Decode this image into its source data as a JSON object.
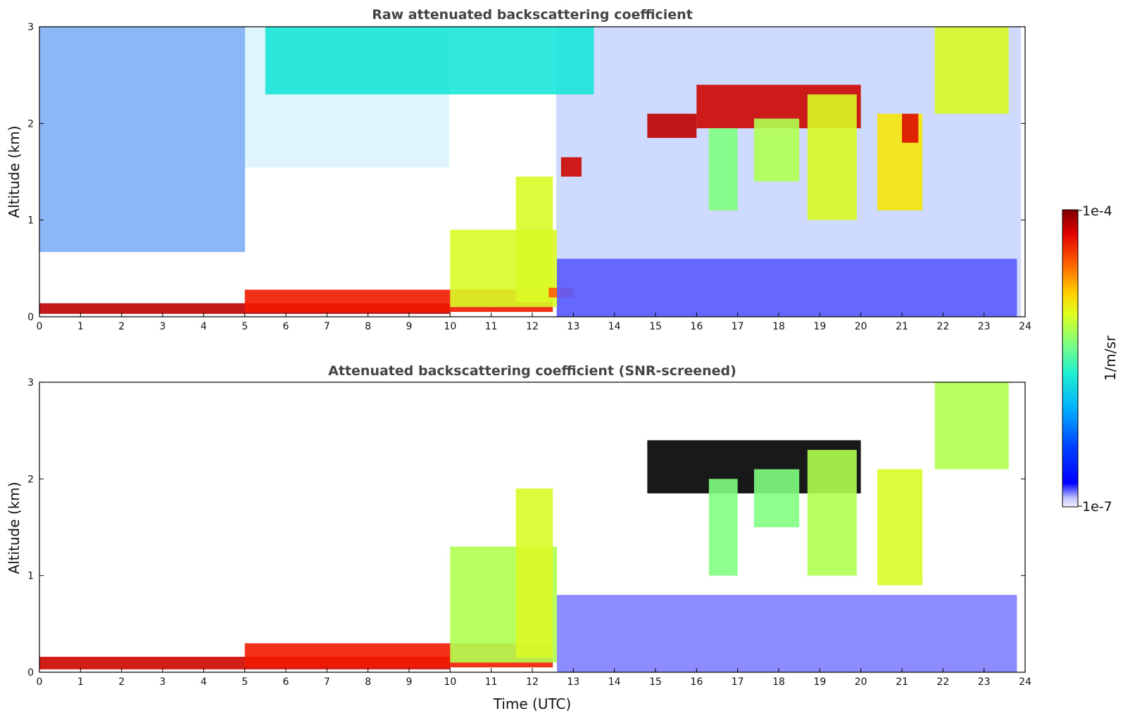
{
  "chart_data": [
    {
      "type": "heatmap",
      "title": "Raw attenuated backscattering coefficient",
      "xlabel": "",
      "ylabel": "Altitude (km)",
      "xlim": [
        0,
        24
      ],
      "ylim": [
        0,
        3
      ],
      "xticks": [
        "0",
        "1",
        "2",
        "3",
        "4",
        "5",
        "6",
        "7",
        "8",
        "9",
        "10",
        "11",
        "12",
        "13",
        "14",
        "15",
        "16",
        "17",
        "18",
        "19",
        "20",
        "21",
        "22",
        "23",
        "24"
      ],
      "yticks": [
        "0",
        "1",
        "2",
        "3"
      ],
      "grid": false,
      "regions": [
        {
          "t": [
            0,
            10
          ],
          "alt": [
            0.03,
            0.14
          ],
          "level": 0.92
        },
        {
          "t": [
            5,
            12.5
          ],
          "alt": [
            0.05,
            0.28
          ],
          "level": 0.85
        },
        {
          "t": [
            10,
            12.6
          ],
          "alt": [
            0.1,
            0.9
          ],
          "level": 0.6
        },
        {
          "t": [
            11.6,
            12.5
          ],
          "alt": [
            0.15,
            1.45
          ],
          "level": 0.6
        },
        {
          "t": [
            12.4,
            13.0
          ],
          "alt": [
            0.2,
            0.3
          ],
          "level": 0.78
        },
        {
          "t": [
            12.6,
            23.8
          ],
          "alt": [
            0,
            0.6
          ],
          "level": 0.12
        },
        {
          "t": [
            12.7,
            13.2
          ],
          "alt": [
            1.45,
            1.65
          ],
          "level": 0.9
        },
        {
          "t": [
            14.8,
            16.0
          ],
          "alt": [
            1.85,
            2.1
          ],
          "level": 0.92
        },
        {
          "t": [
            16.0,
            20.0
          ],
          "alt": [
            1.95,
            2.4
          ],
          "level": 0.9
        },
        {
          "t": [
            16.3,
            17.0
          ],
          "alt": [
            1.1,
            1.95
          ],
          "level": 0.5
        },
        {
          "t": [
            17.4,
            18.5
          ],
          "alt": [
            1.4,
            2.05
          ],
          "level": 0.55
        },
        {
          "t": [
            18.7,
            19.9
          ],
          "alt": [
            1.0,
            2.3
          ],
          "level": 0.6
        },
        {
          "t": [
            20.4,
            21.5
          ],
          "alt": [
            1.1,
            2.1
          ],
          "level": 0.65
        },
        {
          "t": [
            21.0,
            21.4
          ],
          "alt": [
            1.8,
            2.1
          ],
          "level": 0.88
        },
        {
          "t": [
            21.8,
            23.6
          ],
          "alt": [
            2.1,
            3.0
          ],
          "level": 0.6
        },
        {
          "t": [
            5.5,
            13.5
          ],
          "alt": [
            2.3,
            3.0
          ],
          "level": 0.4
        }
      ]
    },
    {
      "type": "heatmap",
      "title": "Attenuated backscattering coefficient (SNR-screened)",
      "xlabel": "Time (UTC)",
      "ylabel": "Altitude (km)",
      "xlim": [
        0,
        24
      ],
      "ylim": [
        0,
        3
      ],
      "xticks": [
        "0",
        "1",
        "2",
        "3",
        "4",
        "5",
        "6",
        "7",
        "8",
        "9",
        "10",
        "11",
        "12",
        "13",
        "14",
        "15",
        "16",
        "17",
        "18",
        "19",
        "20",
        "21",
        "22",
        "23",
        "24"
      ],
      "yticks": [
        "0",
        "1",
        "2",
        "3"
      ],
      "grid": false,
      "regions": [
        {
          "t": [
            0,
            10
          ],
          "alt": [
            0.03,
            0.16
          ],
          "level": 0.9
        },
        {
          "t": [
            5,
            12.5
          ],
          "alt": [
            0.05,
            0.3
          ],
          "level": 0.85
        },
        {
          "t": [
            10,
            12.6
          ],
          "alt": [
            0.1,
            1.3
          ],
          "level": 0.55
        },
        {
          "t": [
            11.6,
            12.5
          ],
          "alt": [
            0.15,
            1.9
          ],
          "level": 0.6
        },
        {
          "t": [
            12.6,
            23.8
          ],
          "alt": [
            0,
            0.8
          ],
          "level": 0.1
        },
        {
          "t": [
            14.8,
            20.0
          ],
          "alt": [
            1.85,
            2.4
          ],
          "level": 1.0
        },
        {
          "t": [
            16.3,
            17.0
          ],
          "alt": [
            1.0,
            2.0
          ],
          "level": 0.5
        },
        {
          "t": [
            17.4,
            18.5
          ],
          "alt": [
            1.5,
            2.1
          ],
          "level": 0.5
        },
        {
          "t": [
            18.7,
            19.9
          ],
          "alt": [
            1.0,
            2.3
          ],
          "level": 0.55
        },
        {
          "t": [
            20.4,
            21.5
          ],
          "alt": [
            0.9,
            2.1
          ],
          "level": 0.6
        },
        {
          "t": [
            21.8,
            23.6
          ],
          "alt": [
            2.1,
            3.0
          ],
          "level": 0.55
        }
      ]
    }
  ],
  "colorbar": {
    "label": "1/m/sr",
    "max_label": "1e-4",
    "min_label": "1e-7",
    "range": [
      1e-07,
      0.0001
    ],
    "scale": "log",
    "colormap": "jet",
    "colors": [
      "#e6e6f5",
      "#a0a0ff",
      "#0000ff",
      "#0060ff",
      "#00c0ff",
      "#20f0d0",
      "#80ff80",
      "#d0ff30",
      "#ffe000",
      "#ff8000",
      "#ff2000",
      "#c00000",
      "#800000"
    ]
  }
}
